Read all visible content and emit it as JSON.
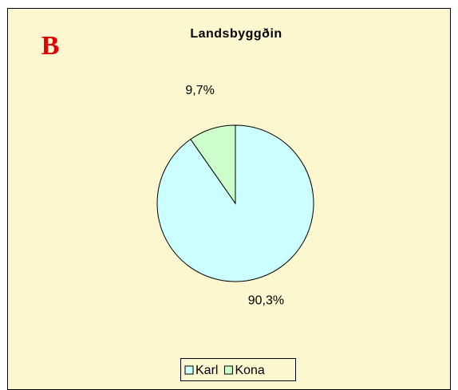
{
  "chart_data": {
    "type": "pie",
    "title": "Landsbyggðin",
    "annotation": "B",
    "categories": [
      "Karl",
      "Kona"
    ],
    "values": [
      90.3,
      9.7
    ],
    "value_labels": [
      "90,3%",
      "9,7%"
    ],
    "colors": [
      "#ccffff",
      "#ccffcc"
    ],
    "legend": "bottom"
  }
}
